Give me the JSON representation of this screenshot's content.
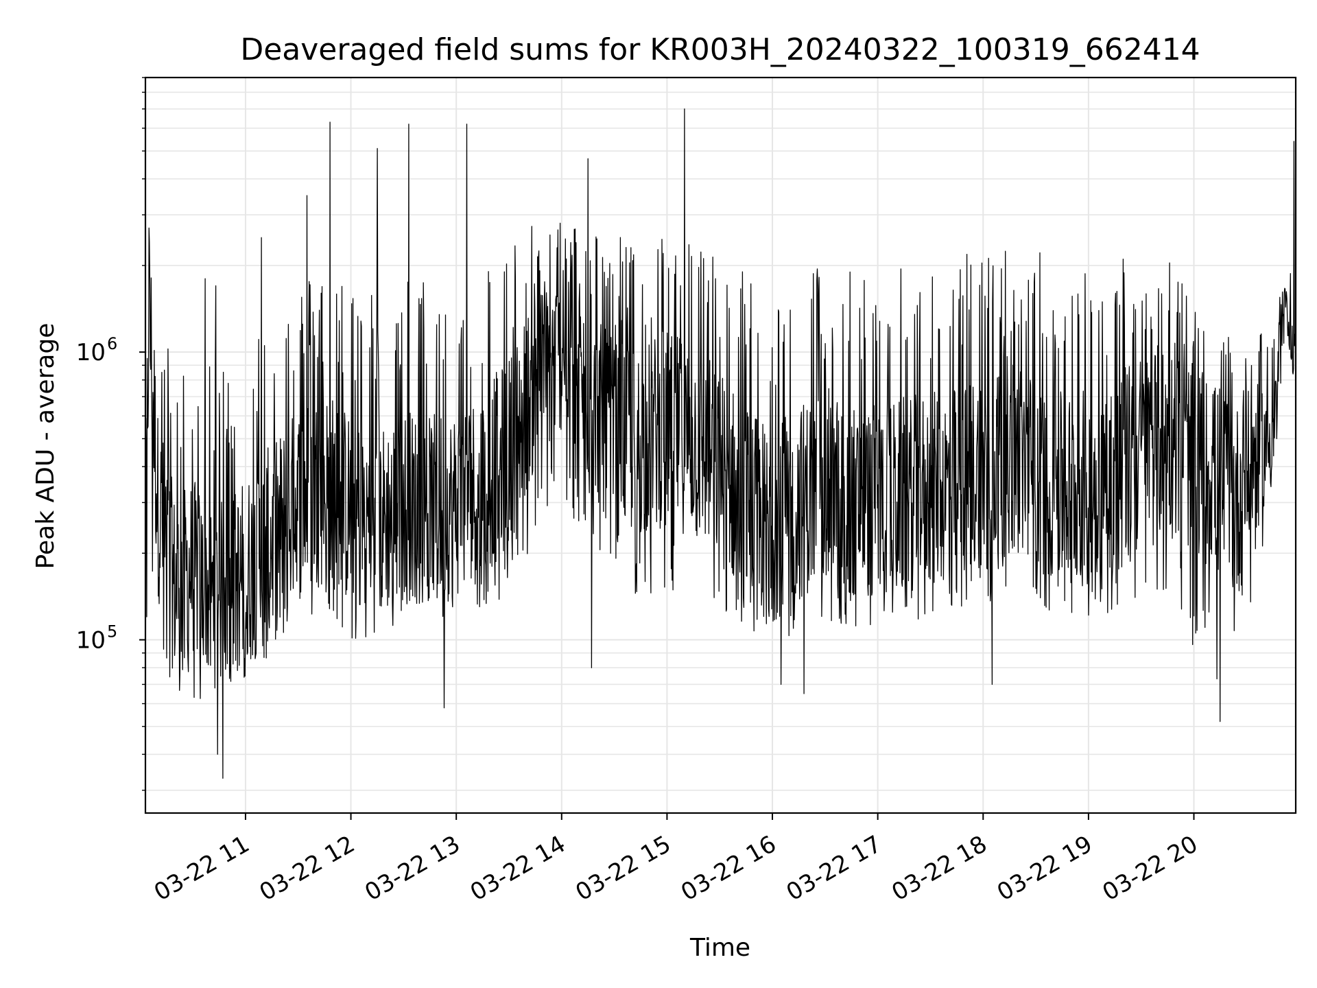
{
  "chart_data": {
    "type": "line",
    "title": "Deaveraged field sums for KR003H_20240322_100319_662414",
    "xlabel": "Time",
    "ylabel": "Peak ADU - average",
    "y_scale": "log",
    "ylim": [
      25000,
      9000000
    ],
    "xlim": [
      "2024-03-22 10:03",
      "2024-03-22 20:58"
    ],
    "grid": true,
    "line_color": "#000000",
    "grid_color": "#e6e6e6",
    "x_ticks": [
      {
        "value": "2024-03-22 11:00",
        "label": "03-22 11"
      },
      {
        "value": "2024-03-22 12:00",
        "label": "03-22 12"
      },
      {
        "value": "2024-03-22 13:00",
        "label": "03-22 13"
      },
      {
        "value": "2024-03-22 14:00",
        "label": "03-22 14"
      },
      {
        "value": "2024-03-22 15:00",
        "label": "03-22 15"
      },
      {
        "value": "2024-03-22 16:00",
        "label": "03-22 16"
      },
      {
        "value": "2024-03-22 17:00",
        "label": "03-22 17"
      },
      {
        "value": "2024-03-22 18:00",
        "label": "03-22 18"
      },
      {
        "value": "2024-03-22 19:00",
        "label": "03-22 19"
      },
      {
        "value": "2024-03-22 20:00",
        "label": "03-22 20"
      }
    ],
    "y_ticks": [
      {
        "value": 100000,
        "base": "10",
        "exp": "5"
      },
      {
        "value": 1000000,
        "base": "10",
        "exp": "6"
      }
    ],
    "series": [
      {
        "x": [
          "2024-03-22 10:03",
          "2024-03-22 10:05",
          "2024-03-22 10:10",
          "2024-03-22 10:20",
          "2024-03-22 10:30",
          "2024-03-22 10:40",
          "2024-03-22 10:50",
          "2024-03-22 11:00",
          "2024-03-22 11:15",
          "2024-03-22 11:30",
          "2024-03-22 11:45",
          "2024-03-22 12:00",
          "2024-03-22 12:15",
          "2024-03-22 12:30",
          "2024-03-22 12:45",
          "2024-03-22 13:00",
          "2024-03-22 13:15",
          "2024-03-22 13:30",
          "2024-03-22 13:45",
          "2024-03-22 14:00",
          "2024-03-22 14:15",
          "2024-03-22 14:30",
          "2024-03-22 14:45",
          "2024-03-22 15:00",
          "2024-03-22 15:15",
          "2024-03-22 15:30",
          "2024-03-22 15:45",
          "2024-03-22 16:00",
          "2024-03-22 16:15",
          "2024-03-22 16:30",
          "2024-03-22 16:45",
          "2024-03-22 17:00",
          "2024-03-22 17:15",
          "2024-03-22 17:30",
          "2024-03-22 17:45",
          "2024-03-22 18:00",
          "2024-03-22 18:15",
          "2024-03-22 18:30",
          "2024-03-22 18:45",
          "2024-03-22 19:00",
          "2024-03-22 19:15",
          "2024-03-22 19:30",
          "2024-03-22 19:45",
          "2024-03-22 19:55",
          "2024-03-22 20:05",
          "2024-03-22 20:15",
          "2024-03-22 20:25",
          "2024-03-22 20:35",
          "2024-03-22 20:45",
          "2024-03-22 20:52",
          "2024-03-22 20:58"
        ],
        "y": [
          200000,
          1500000,
          300000,
          150000,
          180000,
          140000,
          150000,
          170000,
          220000,
          300000,
          350000,
          280000,
          250000,
          300000,
          280000,
          300000,
          350000,
          450000,
          800000,
          1000000,
          700000,
          500000,
          500000,
          550000,
          500000,
          400000,
          300000,
          250000,
          300000,
          350000,
          300000,
          300000,
          320000,
          330000,
          350000,
          400000,
          450000,
          380000,
          330000,
          350000,
          380000,
          450000,
          500000,
          450000,
          400000,
          350000,
          300000,
          450000,
          500000,
          1500000,
          900000
        ],
        "envelope_high": [
          2500000,
          2000000,
          1200000,
          1000000,
          800000,
          900000,
          1000000,
          1200000,
          1500000,
          1800000,
          2000000,
          1800000,
          1800000,
          1900000,
          1800000,
          1900000,
          2000000,
          2500000,
          2800000,
          3000000,
          2800000,
          2600000,
          2500000,
          2700000,
          2600000,
          2200000,
          2000000,
          1700000,
          1900000,
          2100000,
          2000000,
          1900000,
          2000000,
          2100000,
          2200000,
          2300000,
          2500000,
          2300000,
          2100000,
          2000000,
          2200000,
          2400000,
          2300000,
          1800000,
          1200000,
          1150000,
          1100000,
          1100000,
          1300000,
          1800000,
          2000000
        ],
        "envelope_low": [
          120000,
          100000,
          75000,
          65000,
          60000,
          60000,
          65000,
          70000,
          85000,
          100000,
          110000,
          100000,
          100000,
          110000,
          110000,
          115000,
          120000,
          150000,
          200000,
          300000,
          200000,
          150000,
          140000,
          150000,
          140000,
          120000,
          110000,
          100000,
          105000,
          115000,
          110000,
          110000,
          115000,
          120000,
          125000,
          130000,
          140000,
          130000,
          120000,
          115000,
          120000,
          130000,
          125000,
          110000,
          80000,
          60000,
          60000,
          150000,
          300000,
          1100000,
          800000
        ],
        "spikes": [
          {
            "x": "2024-03-22 10:05",
            "y": 2700000
          },
          {
            "x": "2024-03-22 10:37",
            "y": 1800000
          },
          {
            "x": "2024-03-22 10:43",
            "y": 1700000
          },
          {
            "x": "2024-03-22 10:44",
            "y": 40000
          },
          {
            "x": "2024-03-22 10:47",
            "y": 33000
          },
          {
            "x": "2024-03-22 11:09",
            "y": 2500000
          },
          {
            "x": "2024-03-22 11:35",
            "y": 3500000
          },
          {
            "x": "2024-03-22 11:48",
            "y": 6300000
          },
          {
            "x": "2024-03-22 12:15",
            "y": 5100000
          },
          {
            "x": "2024-03-22 12:33",
            "y": 6200000
          },
          {
            "x": "2024-03-22 12:53",
            "y": 58000
          },
          {
            "x": "2024-03-22 13:06",
            "y": 6200000
          },
          {
            "x": "2024-03-22 14:15",
            "y": 4700000
          },
          {
            "x": "2024-03-22 14:17",
            "y": 80000
          },
          {
            "x": "2024-03-22 15:10",
            "y": 7000000
          },
          {
            "x": "2024-03-22 16:05",
            "y": 70000
          },
          {
            "x": "2024-03-22 16:18",
            "y": 65000
          },
          {
            "x": "2024-03-22 18:05",
            "y": 70000
          },
          {
            "x": "2024-03-22 20:15",
            "y": 52000
          },
          {
            "x": "2024-03-22 20:57",
            "y": 5400000
          }
        ]
      }
    ]
  }
}
